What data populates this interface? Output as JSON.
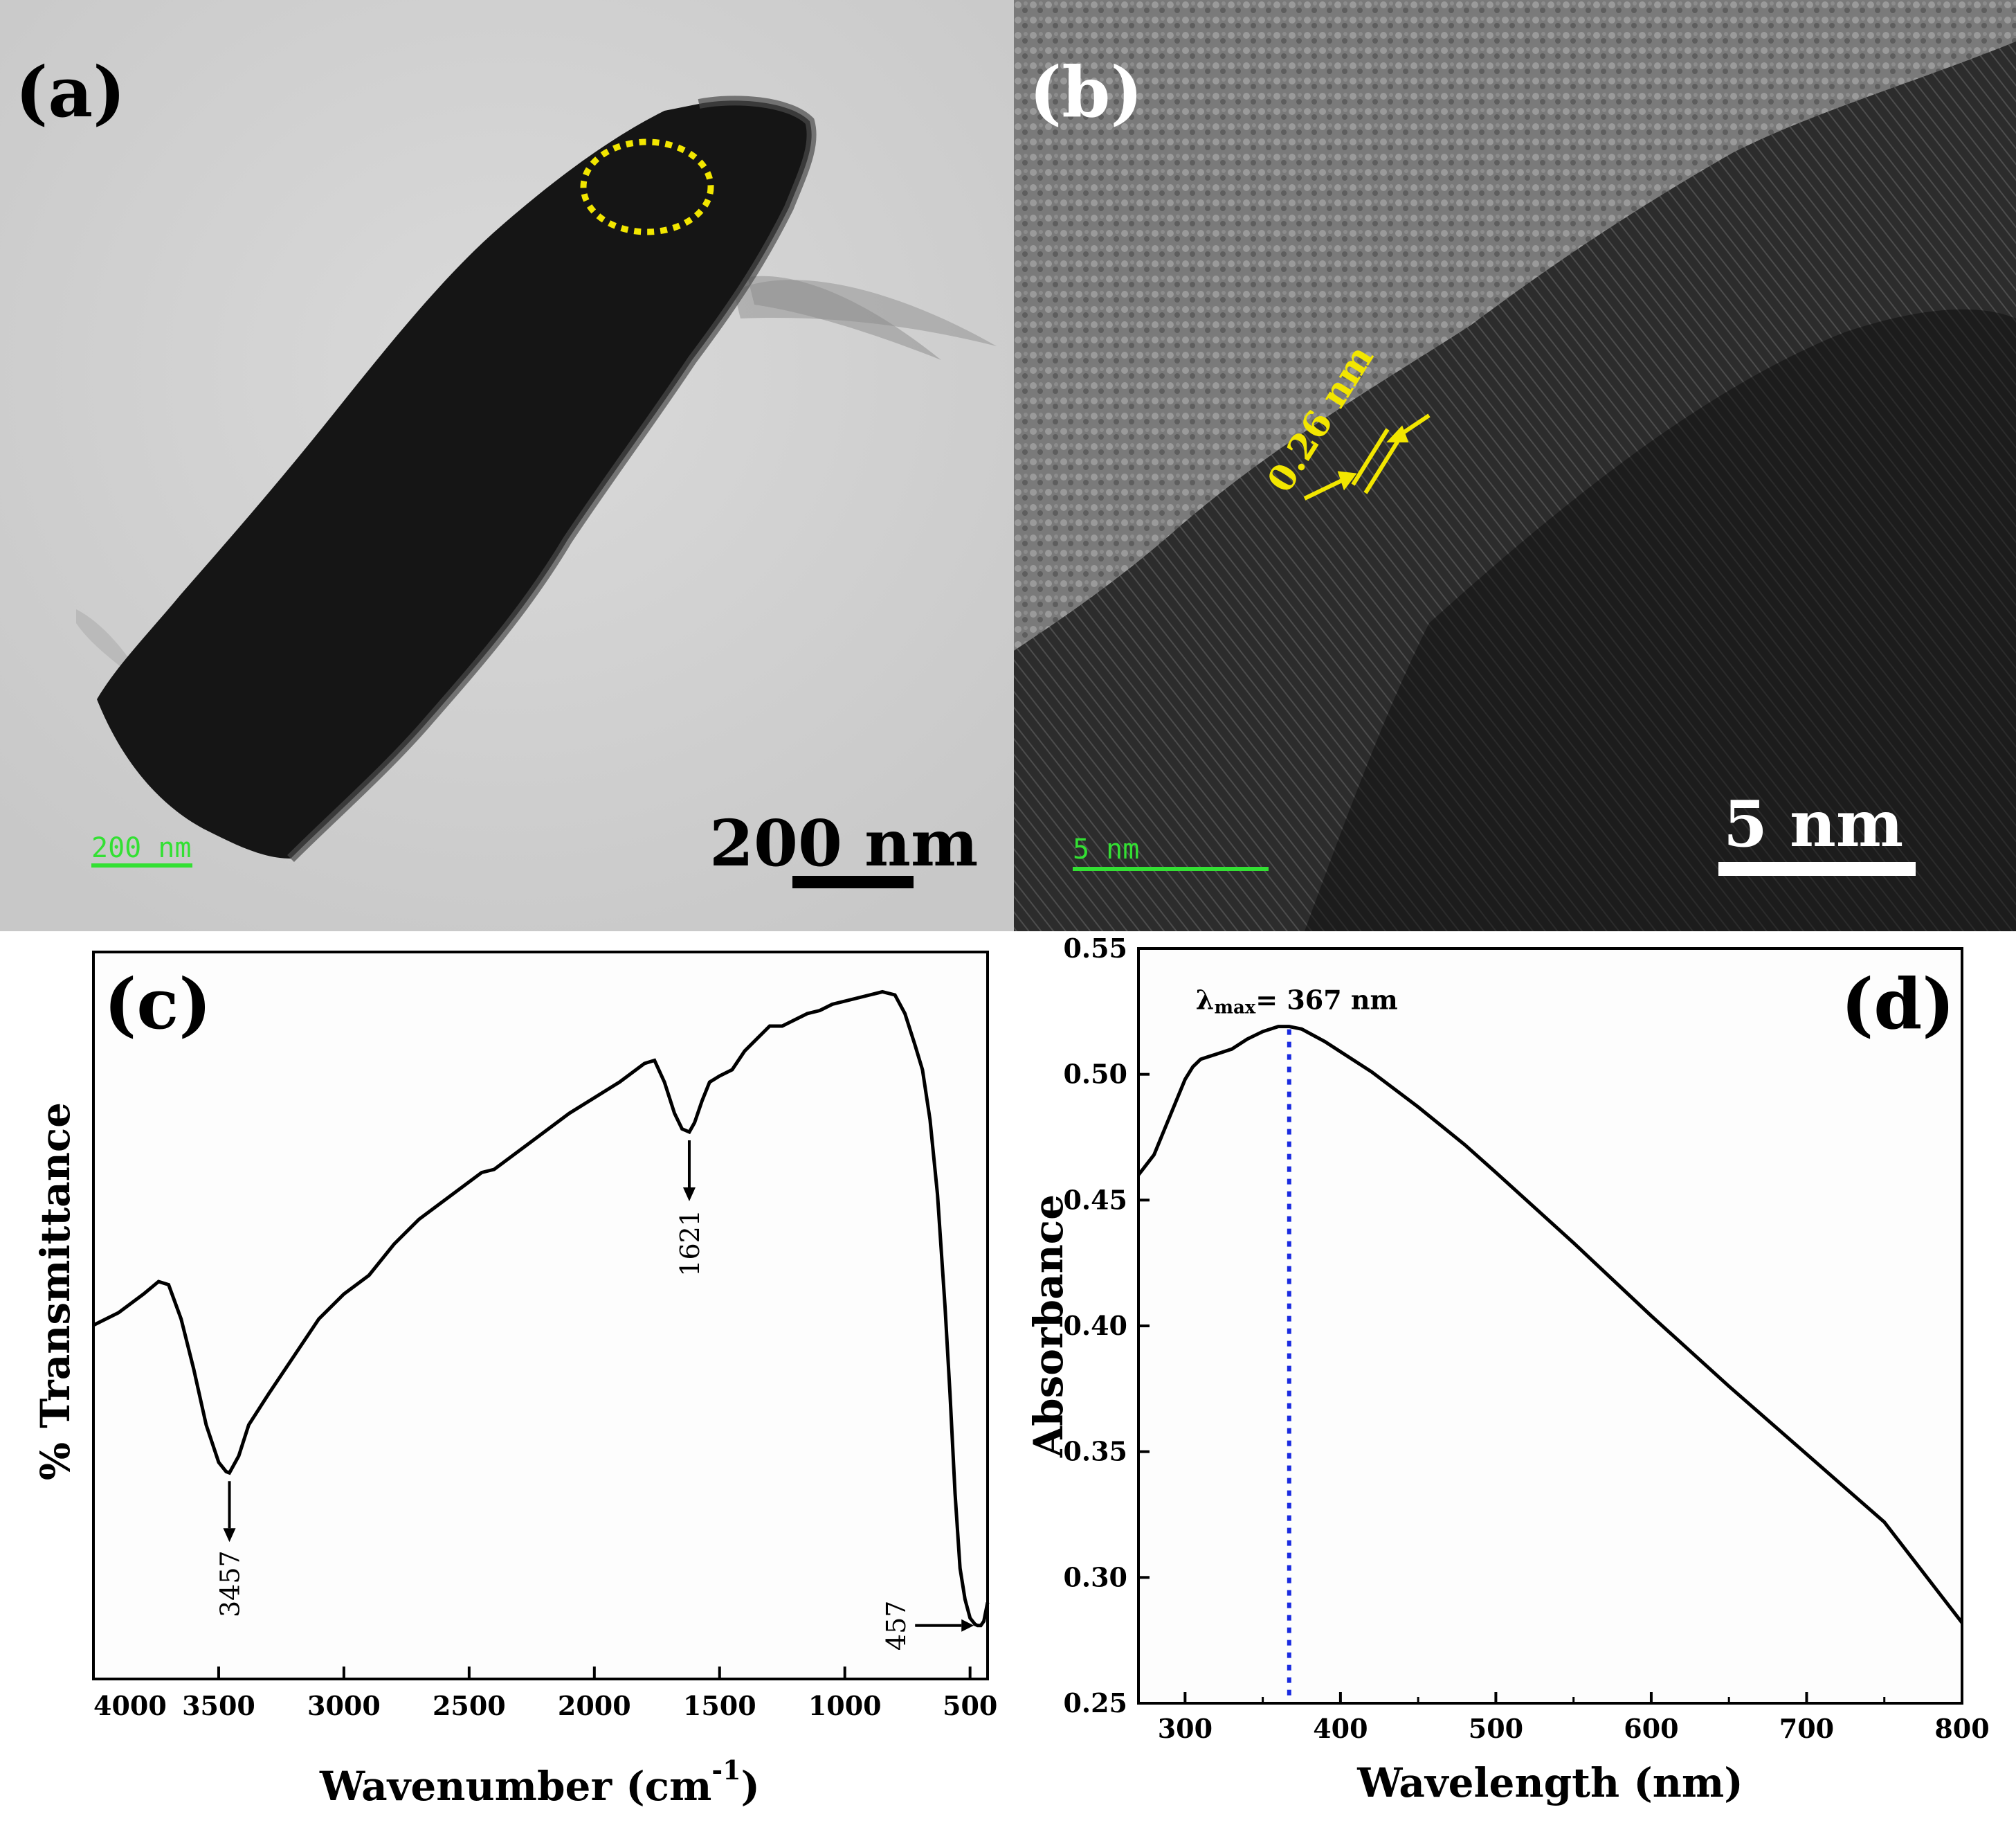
{
  "panels": {
    "a": {
      "label": "(a)",
      "scalebar_small": "200 nm",
      "scalebar_large": "200 nm",
      "colors": {
        "background": "#d4d4d4",
        "particle": "#151515",
        "highlight": "#f2e600",
        "small_bar": "#33e033"
      }
    },
    "b": {
      "label": "(b)",
      "lattice_spacing": "0.26 nm",
      "scalebar_small": "5 nm",
      "scalebar_large": "5 nm",
      "colors": {
        "annotation": "#f2e600",
        "small_bar": "#33e033"
      }
    }
  },
  "chart_data": [
    {
      "panel_label": "(c)",
      "type": "line",
      "xlabel": "Wavenumber (cm",
      "xlabel_sup": "-1",
      "xlabel_close": ")",
      "ylabel": "% Transmittance",
      "xlim": [
        4000,
        430
      ],
      "x_reversed": true,
      "ylim": [
        0,
        100
      ],
      "y_ticks_shown": false,
      "x_ticks": [
        4000,
        3500,
        3000,
        2500,
        2000,
        1500,
        1000,
        500
      ],
      "series": [
        {
          "x": [
            4000,
            3900,
            3800,
            3740,
            3700,
            3650,
            3600,
            3550,
            3500,
            3470,
            3457,
            3420,
            3380,
            3300,
            3200,
            3100,
            3000,
            2900,
            2800,
            2700,
            2600,
            2500,
            2450,
            2400,
            2300,
            2200,
            2100,
            2000,
            1900,
            1800,
            1760,
            1720,
            1680,
            1650,
            1621,
            1600,
            1570,
            1540,
            1500,
            1450,
            1400,
            1350,
            1300,
            1250,
            1200,
            1150,
            1100,
            1050,
            1000,
            950,
            900,
            850,
            800,
            760,
            720,
            690,
            660,
            630,
            600,
            580,
            560,
            540,
            520,
            500,
            480,
            470,
            457,
            445,
            435,
            430
          ],
          "y": [
            49,
            51,
            54,
            56,
            55.5,
            50,
            42,
            33,
            27,
            25.5,
            25.3,
            28,
            33,
            38,
            44,
            50,
            54,
            57,
            62,
            66,
            69,
            72,
            73.5,
            74,
            77,
            80,
            83,
            85.5,
            88,
            91,
            91.5,
            88,
            83,
            80.5,
            80,
            81.5,
            85,
            88,
            89,
            90,
            93,
            95,
            97,
            97,
            98,
            99,
            99.5,
            100.5,
            101,
            101.5,
            102,
            102.5,
            102,
            99,
            94,
            90,
            82,
            70,
            52,
            38,
            22,
            10,
            5,
            2,
            1,
            0.8,
            0.8,
            1.5,
            3.5,
            4.5
          ]
        }
      ],
      "annotations": [
        {
          "text": "3457",
          "x": 3457
        },
        {
          "text": "1621",
          "x": 1621
        },
        {
          "text": "457",
          "x": 457
        }
      ]
    },
    {
      "panel_label": "(d)",
      "type": "line",
      "xlabel": "Wavelength (nm)",
      "ylabel": "Absorbance",
      "xlim": [
        270,
        800
      ],
      "ylim": [
        0.25,
        0.55
      ],
      "x_ticks": [
        300,
        400,
        500,
        600,
        700,
        800
      ],
      "y_ticks": [
        "0.25",
        "0.30",
        "0.35",
        "0.40",
        "0.45",
        "0.50",
        "0.55"
      ],
      "peak_x": 367,
      "peak_label_main": "λ",
      "peak_label_sub": "max",
      "peak_label_rest": "= 367 nm",
      "marker_color": "#1a2be0",
      "series": [
        {
          "x": [
            270,
            280,
            290,
            300,
            305,
            310,
            315,
            320,
            330,
            340,
            350,
            360,
            367,
            375,
            390,
            400,
            420,
            450,
            480,
            500,
            550,
            600,
            650,
            700,
            750,
            800
          ],
          "y": [
            0.46,
            0.468,
            0.483,
            0.498,
            0.503,
            0.506,
            0.507,
            0.508,
            0.51,
            0.514,
            0.517,
            0.519,
            0.519,
            0.518,
            0.513,
            0.509,
            0.501,
            0.487,
            0.472,
            0.461,
            0.433,
            0.404,
            0.376,
            0.349,
            0.322,
            0.282
          ]
        }
      ]
    }
  ]
}
